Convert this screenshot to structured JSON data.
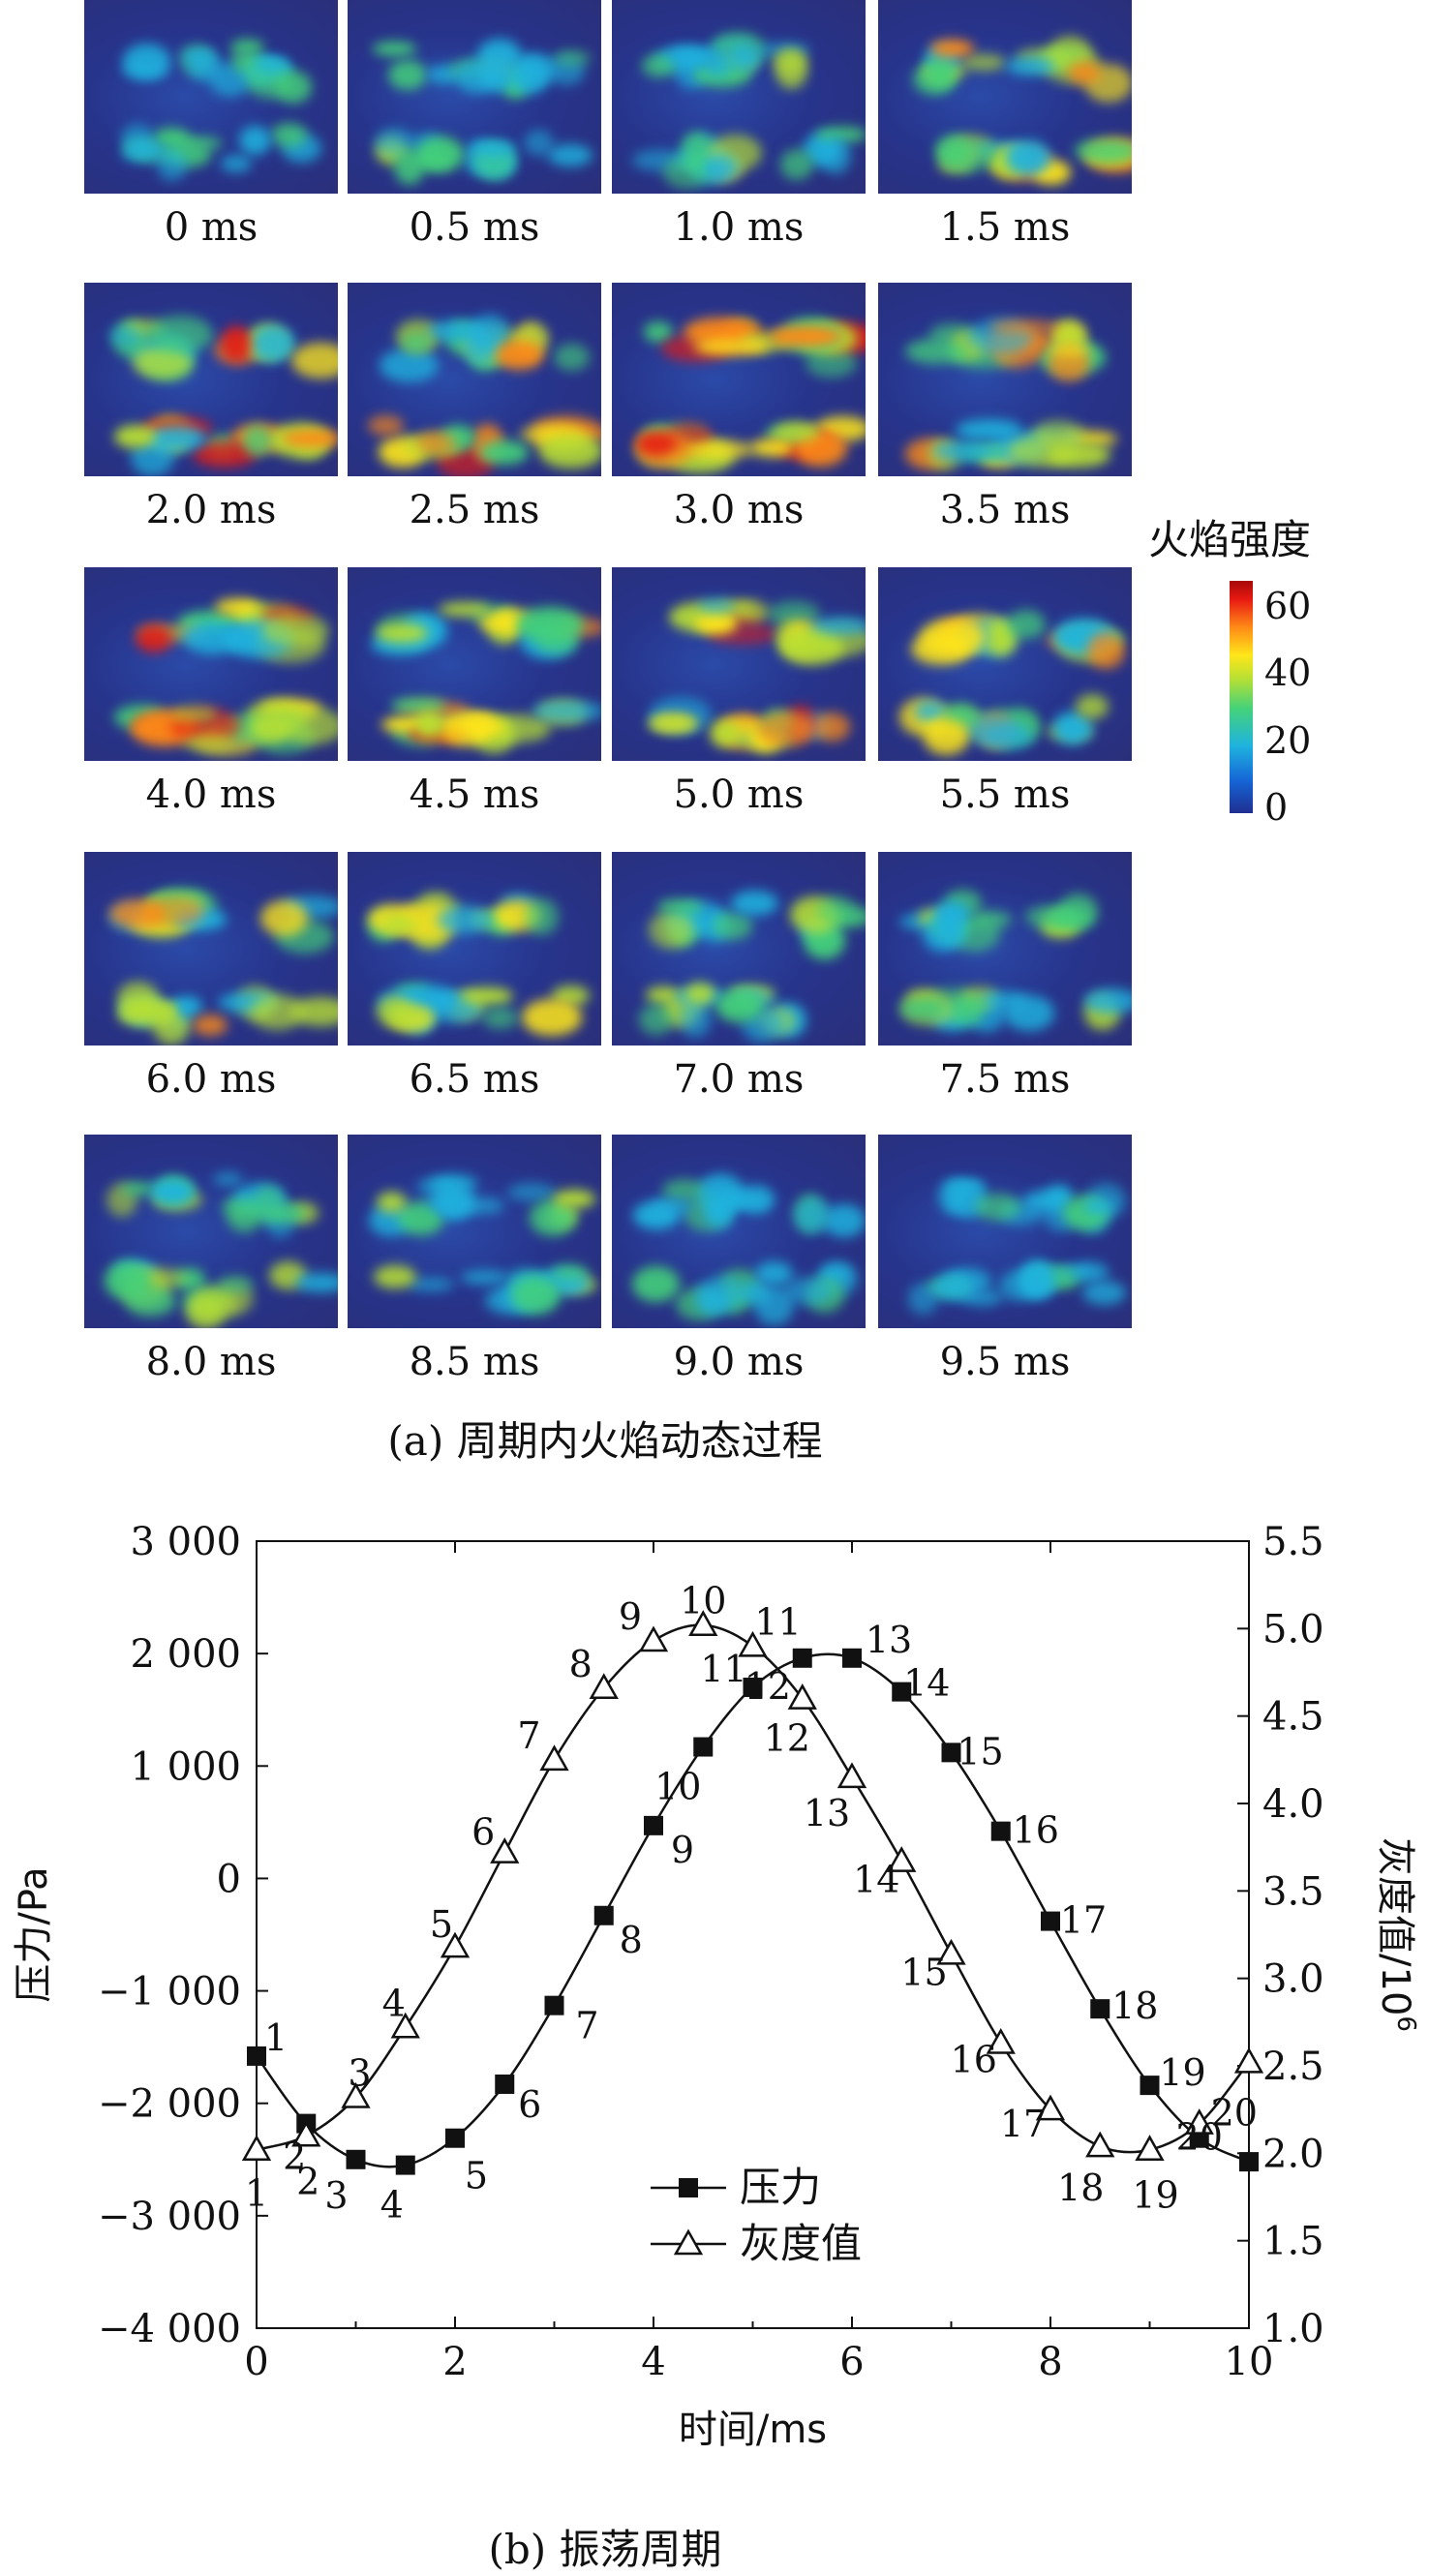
{
  "panel_a": {
    "frames": [
      {
        "label": "0 ms",
        "intensity": 0.35
      },
      {
        "label": "0.5 ms",
        "intensity": 0.4
      },
      {
        "label": "1.0 ms",
        "intensity": 0.5
      },
      {
        "label": "1.5 ms",
        "intensity": 0.65
      },
      {
        "label": "2.0 ms",
        "intensity": 0.7
      },
      {
        "label": "2.5 ms",
        "intensity": 0.7
      },
      {
        "label": "3.0 ms",
        "intensity": 0.8
      },
      {
        "label": "3.5 ms",
        "intensity": 0.75
      },
      {
        "label": "4.0 ms",
        "intensity": 0.75
      },
      {
        "label": "4.5 ms",
        "intensity": 0.75
      },
      {
        "label": "5.0 ms",
        "intensity": 0.7
      },
      {
        "label": "5.5 ms",
        "intensity": 0.65
      },
      {
        "label": "6.0 ms",
        "intensity": 0.65
      },
      {
        "label": "6.5 ms",
        "intensity": 0.55
      },
      {
        "label": "7.0 ms",
        "intensity": 0.45
      },
      {
        "label": "7.5 ms",
        "intensity": 0.45
      },
      {
        "label": "8.0 ms",
        "intensity": 0.45
      },
      {
        "label": "8.5 ms",
        "intensity": 0.4
      },
      {
        "label": "9.0 ms",
        "intensity": 0.35
      },
      {
        "label": "9.5 ms",
        "intensity": 0.3
      }
    ],
    "caption": "(a) 周期内火焰动态过程",
    "colorbar": {
      "title": "火焰强度",
      "ticks": [
        "60",
        "40",
        "20",
        "0"
      ],
      "colormap": [
        "#1f2f91",
        "#1565d6",
        "#1fb3df",
        "#44d27a",
        "#b8e033",
        "#ffe61a",
        "#ff8a17",
        "#e81a12",
        "#a60808"
      ]
    }
  },
  "panel_b": {
    "caption": "(b) 振荡周期"
  },
  "chart_data": {
    "type": "line",
    "xlabel": "时间/ms",
    "ylabel": "压力/Pa",
    "y2label": "灰度值/10",
    "y2label_sup": "6",
    "xlim": [
      0,
      10
    ],
    "ylim": [
      -4000,
      3000
    ],
    "y2lim": [
      1.0,
      5.5
    ],
    "xticks": [
      0,
      2,
      4,
      6,
      8,
      10
    ],
    "yticks": [
      -4000,
      -3000,
      -2000,
      -1000,
      0,
      1000,
      2000,
      3000
    ],
    "ytick_labels": [
      "−4 000",
      "−3 000",
      "−2 000",
      "−1 000",
      "0",
      "1 000",
      "2 000",
      "3 000"
    ],
    "y2ticks": [
      "1.0",
      "1.5",
      "2.0",
      "2.5",
      "3.0",
      "3.5",
      "4.0",
      "4.5",
      "5.0",
      "5.5"
    ],
    "legend_position": "bottom-center",
    "series": [
      {
        "name": "压力",
        "axis": "left",
        "marker": "filled-square",
        "x": [
          0,
          0.5,
          1,
          1.5,
          2,
          2.5,
          3,
          3.5,
          4,
          4.5,
          5,
          5.5,
          6,
          6.5,
          7,
          7.5,
          8,
          8.5,
          9,
          9.5,
          10
        ],
        "values": [
          -1580,
          -2180,
          -2500,
          -2550,
          -2310,
          -1830,
          -1130,
          -330,
          470,
          1170,
          1700,
          1960,
          1960,
          1660,
          1120,
          420,
          -380,
          -1160,
          -1840,
          -2310,
          -2520
        ],
        "point_labels": [
          "1",
          "2",
          "3",
          "4",
          "5",
          "6",
          "7",
          "8",
          "9",
          "10",
          "11",
          "12",
          "13",
          "14",
          "15",
          "16",
          "17",
          "18",
          "19",
          "20",
          ""
        ]
      },
      {
        "name": "灰度值",
        "axis": "right",
        "marker": "open-triangle",
        "x": [
          0,
          0.5,
          1,
          1.5,
          2,
          2.5,
          3,
          3.5,
          4,
          4.5,
          5,
          5.5,
          6,
          6.5,
          7,
          7.5,
          8,
          8.5,
          9,
          9.5,
          10
        ],
        "values": [
          2.02,
          2.1,
          2.32,
          2.72,
          3.18,
          3.72,
          4.25,
          4.66,
          4.93,
          5.02,
          4.9,
          4.6,
          4.15,
          3.67,
          3.14,
          2.63,
          2.25,
          2.04,
          2.02,
          2.17,
          2.52
        ],
        "point_labels": [
          "1",
          "2",
          "3",
          "4",
          "5",
          "6",
          "7",
          "8",
          "9",
          "10",
          "11",
          "12",
          "13",
          "14",
          "15",
          "16",
          "17",
          "18",
          "19",
          "20",
          ""
        ]
      }
    ]
  }
}
